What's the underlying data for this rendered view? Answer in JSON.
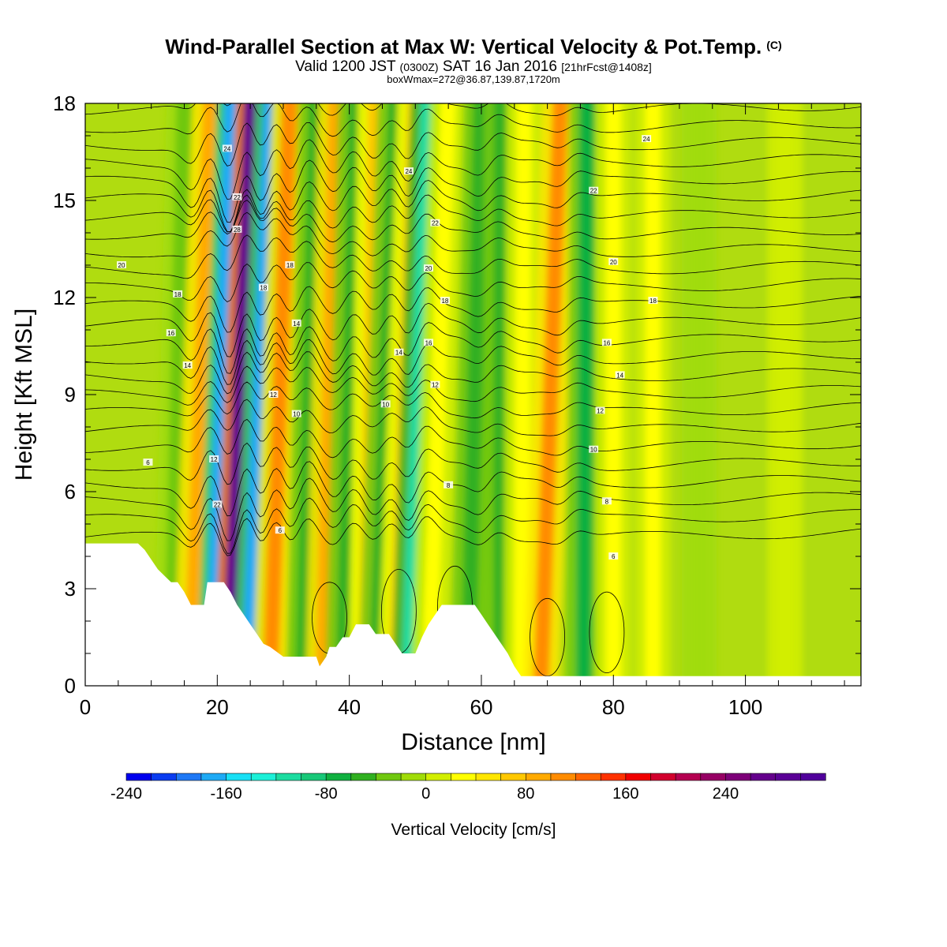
{
  "header": {
    "title": "Wind-Parallel Section at Max W: Vertical Velocity & Pot.Temp.",
    "title_mark": "(C)",
    "valid_prefix": "Valid 1200 JST",
    "valid_utc": "(0300Z)",
    "valid_date": "SAT 16 Jan 2016",
    "forecast": "[21hrFcst@1408z]",
    "box_info": "boxWmax=272@36.87,139.87,1720m"
  },
  "chart_data": {
    "type": "heatmap",
    "title": "Wind-Parallel Section at Max W: Vertical Velocity & Pot.Temp.",
    "xlabel": "Distance [nm]",
    "ylabel": "Height [Kft MSL]",
    "xlim": [
      0,
      117.5
    ],
    "ylim": [
      0,
      18
    ],
    "x_ticks": [
      0,
      20,
      40,
      60,
      80,
      100
    ],
    "y_ticks": [
      0,
      3,
      6,
      9,
      12,
      15,
      18
    ],
    "colorbar": {
      "label": "Vertical Velocity [cm/s]",
      "min": -240,
      "max": 320,
      "step": 20,
      "tick_values": [
        -240,
        -160,
        -80,
        0,
        80,
        160,
        240
      ],
      "colors": [
        "#0000ee",
        "#0a3cf0",
        "#1e78f5",
        "#1eaaf5",
        "#18e0f5",
        "#1cf0d8",
        "#1cdca0",
        "#18c878",
        "#10b040",
        "#30b020",
        "#70c810",
        "#a0dc08",
        "#d2ee00",
        "#ffff00",
        "#ffe600",
        "#ffc800",
        "#ffaa00",
        "#ff8c00",
        "#ff6400",
        "#ff3200",
        "#f00000",
        "#d2002d",
        "#b40050",
        "#960064",
        "#7d0078",
        "#64008c",
        "#5a0096",
        "#50009b"
      ]
    },
    "w_bands": [
      {
        "x_top": 15,
        "x_bot": 13,
        "w": -40
      },
      {
        "x_top": 19,
        "x_bot": 16,
        "w": 80
      },
      {
        "x_top": 22,
        "x_bot": 19,
        "w": -180
      },
      {
        "x_top": 25,
        "x_bot": 21.5,
        "w": 272
      },
      {
        "x_top": 28,
        "x_bot": 24.5,
        "w": -170
      },
      {
        "x_top": 31,
        "x_bot": 28,
        "w": 100
      },
      {
        "x_top": 35,
        "x_bot": 33,
        "w": -60
      },
      {
        "x_top": 38,
        "x_bot": 36,
        "w": 90
      },
      {
        "x_top": 41,
        "x_bot": 39,
        "w": -60
      },
      {
        "x_top": 44,
        "x_bot": 42.5,
        "w": 70
      },
      {
        "x_top": 47,
        "x_bot": 44,
        "w": -60
      },
      {
        "x_top": 50,
        "x_bot": 47,
        "w": 60
      },
      {
        "x_top": 52,
        "x_bot": 49,
        "w": -110
      },
      {
        "x_top": 55,
        "x_bot": 52,
        "w": 30
      },
      {
        "x_top": 60,
        "x_bot": 58,
        "w": -50
      },
      {
        "x_top": 63,
        "x_bot": 63,
        "w": -60
      },
      {
        "x_top": 66.5,
        "x_bot": 66,
        "w": 30
      },
      {
        "x_top": 72,
        "x_bot": 69,
        "w": 110
      },
      {
        "x_top": 76,
        "x_bot": 75.5,
        "w": -70
      },
      {
        "x_top": 80,
        "x_bot": 80,
        "w": 20
      },
      {
        "x_top": 86,
        "x_bot": 86,
        "w": 20
      },
      {
        "x_top": 93,
        "x_bot": 93,
        "w": -20
      },
      {
        "x_top": 106,
        "x_bot": 106,
        "w": 15
      }
    ],
    "terrain": [
      [
        0,
        4.4
      ],
      [
        6,
        4.4
      ],
      [
        8,
        4.4
      ],
      [
        9,
        4.2
      ],
      [
        10,
        3.9
      ],
      [
        11,
        3.6
      ],
      [
        12,
        3.4
      ],
      [
        13,
        3.2
      ],
      [
        14,
        3.2
      ],
      [
        15,
        2.9
      ],
      [
        16,
        2.5
      ],
      [
        18,
        2.5
      ],
      [
        18.5,
        3.2
      ],
      [
        21,
        3.2
      ],
      [
        22,
        2.9
      ],
      [
        23,
        2.5
      ],
      [
        24,
        2.2
      ],
      [
        25,
        1.9
      ],
      [
        26,
        1.6
      ],
      [
        27,
        1.3
      ],
      [
        28,
        1.2
      ],
      [
        30,
        0.9
      ],
      [
        35,
        0.9
      ],
      [
        35.5,
        0.6
      ],
      [
        36.5,
        0.9
      ],
      [
        37,
        1.2
      ],
      [
        38,
        1.2
      ],
      [
        39,
        1.5
      ],
      [
        40,
        1.5
      ],
      [
        41,
        1.9
      ],
      [
        43,
        1.9
      ],
      [
        44,
        1.6
      ],
      [
        46,
        1.6
      ],
      [
        47,
        1.3
      ],
      [
        48,
        1.0
      ],
      [
        50,
        1.0
      ],
      [
        51,
        1.5
      ],
      [
        52,
        1.9
      ],
      [
        53,
        2.2
      ],
      [
        54,
        2.5
      ],
      [
        59,
        2.5
      ],
      [
        60,
        2.2
      ],
      [
        61,
        1.9
      ],
      [
        62,
        1.6
      ],
      [
        63,
        1.3
      ],
      [
        64,
        1.0
      ],
      [
        65,
        0.6
      ],
      [
        66,
        0.3
      ],
      [
        117.5,
        0.3
      ]
    ],
    "theta_contours": {
      "interval_K": 2,
      "labels": [
        {
          "text": "6",
          "x": 9.5,
          "y": 6.9
        },
        {
          "text": "14",
          "x": 15.5,
          "y": 9.9
        },
        {
          "text": "16",
          "x": 13,
          "y": 10.9
        },
        {
          "text": "18",
          "x": 14,
          "y": 12.1
        },
        {
          "text": "20",
          "x": 5.5,
          "y": 13.0
        },
        {
          "text": "22",
          "x": 20,
          "y": 5.6
        },
        {
          "text": "12",
          "x": 19.5,
          "y": 7.0
        },
        {
          "text": "24",
          "x": 21.5,
          "y": 16.6
        },
        {
          "text": "28",
          "x": 23,
          "y": 14.1
        },
        {
          "text": "22",
          "x": 23,
          "y": 15.1
        },
        {
          "text": "18",
          "x": 27,
          "y": 12.3
        },
        {
          "text": "18",
          "x": 31,
          "y": 13.0
        },
        {
          "text": "14",
          "x": 32,
          "y": 11.2
        },
        {
          "text": "12",
          "x": 28.5,
          "y": 9.0
        },
        {
          "text": "10",
          "x": 32,
          "y": 8.4
        },
        {
          "text": "6",
          "x": 29.5,
          "y": 4.8
        },
        {
          "text": "10",
          "x": 45.5,
          "y": 8.7
        },
        {
          "text": "14",
          "x": 47.5,
          "y": 10.3
        },
        {
          "text": "24",
          "x": 49,
          "y": 15.9
        },
        {
          "text": "22",
          "x": 53,
          "y": 14.3
        },
        {
          "text": "20",
          "x": 52,
          "y": 12.9
        },
        {
          "text": "18",
          "x": 54.5,
          "y": 11.9
        },
        {
          "text": "16",
          "x": 52,
          "y": 10.6
        },
        {
          "text": "12",
          "x": 53,
          "y": 9.3
        },
        {
          "text": "8",
          "x": 55,
          "y": 6.2
        },
        {
          "text": "22",
          "x": 77,
          "y": 15.3
        },
        {
          "text": "20",
          "x": 80,
          "y": 13.1
        },
        {
          "text": "16",
          "x": 79,
          "y": 10.6
        },
        {
          "text": "14",
          "x": 81,
          "y": 9.6
        },
        {
          "text": "12",
          "x": 78,
          "y": 8.5
        },
        {
          "text": "10",
          "x": 77,
          "y": 7.3
        },
        {
          "text": "8",
          "x": 79,
          "y": 5.7
        },
        {
          "text": "6",
          "x": 80,
          "y": 4.0
        },
        {
          "text": "24",
          "x": 85,
          "y": 16.9
        },
        {
          "text": "18",
          "x": 86,
          "y": 11.9
        }
      ]
    }
  }
}
